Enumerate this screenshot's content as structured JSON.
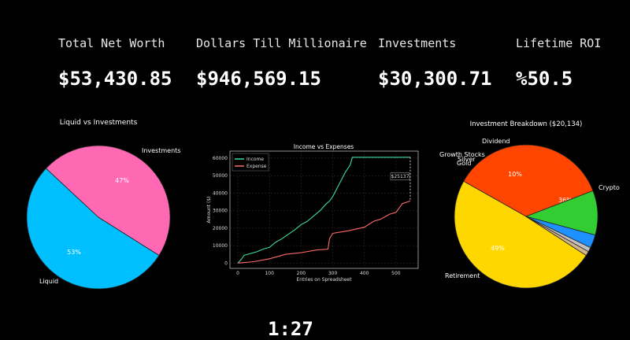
{
  "stats": [
    {
      "label": "Total Net Worth",
      "value": "$53,430.85"
    },
    {
      "label": "Dollars Till Millionaire",
      "value": "$946,569.15"
    },
    {
      "label": "Investments",
      "value": "$30,300.71"
    },
    {
      "label": "Lifetime ROI",
      "value": "%50.5"
    }
  ],
  "chart_data": [
    {
      "type": "pie",
      "title": "Liquid vs Investments",
      "slices": [
        {
          "label": "Liquid",
          "value": 53,
          "pct_label": "53%",
          "color": "#00bfff"
        },
        {
          "label": "Investments",
          "value": 47,
          "pct_label": "47%",
          "color": "#ff69b4"
        }
      ]
    },
    {
      "type": "line",
      "title": "Income vs Expenses",
      "xlabel": "Entries on Spreadsheet",
      "ylabel": "Amount ($)",
      "xlim": [
        -25,
        570
      ],
      "ylim": [
        -3000,
        64000
      ],
      "xticks": [
        0,
        100,
        200,
        300,
        400,
        500
      ],
      "yticks": [
        0,
        10000,
        20000,
        30000,
        40000,
        50000,
        60000
      ],
      "annotation": "$25137",
      "series": [
        {
          "name": "Income",
          "color": "#3ddc97",
          "points": [
            [
              0,
              0
            ],
            [
              10,
              2000
            ],
            [
              20,
              4500
            ],
            [
              40,
              5500
            ],
            [
              60,
              6500
            ],
            [
              80,
              8000
            ],
            [
              100,
              9000
            ],
            [
              120,
              12000
            ],
            [
              140,
              14000
            ],
            [
              160,
              16500
            ],
            [
              180,
              19000
            ],
            [
              200,
              22000
            ],
            [
              220,
              24000
            ],
            [
              240,
              27000
            ],
            [
              260,
              30000
            ],
            [
              280,
              34000
            ],
            [
              290,
              35500
            ],
            [
              300,
              38000
            ],
            [
              320,
              45000
            ],
            [
              340,
              52000
            ],
            [
              355,
              56000
            ],
            [
              362,
              60500
            ],
            [
              545,
              60500
            ]
          ]
        },
        {
          "name": "Expense",
          "color": "#ff6b6b",
          "points": [
            [
              0,
              0
            ],
            [
              50,
              800
            ],
            [
              100,
              2500
            ],
            [
              150,
              5000
            ],
            [
              200,
              6000
            ],
            [
              250,
              7500
            ],
            [
              285,
              8000
            ],
            [
              290,
              14000
            ],
            [
              300,
              17000
            ],
            [
              350,
              18500
            ],
            [
              400,
              20500
            ],
            [
              430,
              24000
            ],
            [
              450,
              25000
            ],
            [
              480,
              28000
            ],
            [
              500,
              29000
            ],
            [
              520,
              34000
            ],
            [
              545,
              35500
            ]
          ]
        }
      ]
    },
    {
      "type": "pie",
      "title": "Investment Breakdown ($20,134)",
      "slices": [
        {
          "label": "Crypto",
          "value": 36,
          "pct_label": "36%",
          "color": "#ff4500"
        },
        {
          "label": "Retirement",
          "value": 49,
          "pct_label": "49%",
          "color": "#ffd700"
        },
        {
          "label": "Gold",
          "value": 1,
          "pct_label": "",
          "color": "#d2b48c"
        },
        {
          "label": "Silver",
          "value": 1,
          "pct_label": "",
          "color": "#c0c0c0"
        },
        {
          "label": "Growth Stocks",
          "value": 3,
          "pct_label": "",
          "color": "#1e90ff"
        },
        {
          "label": "Dividend",
          "value": 10,
          "pct_label": "10%",
          "color": "#32cd32"
        }
      ]
    }
  ],
  "footer": {
    "text": "1:27"
  }
}
